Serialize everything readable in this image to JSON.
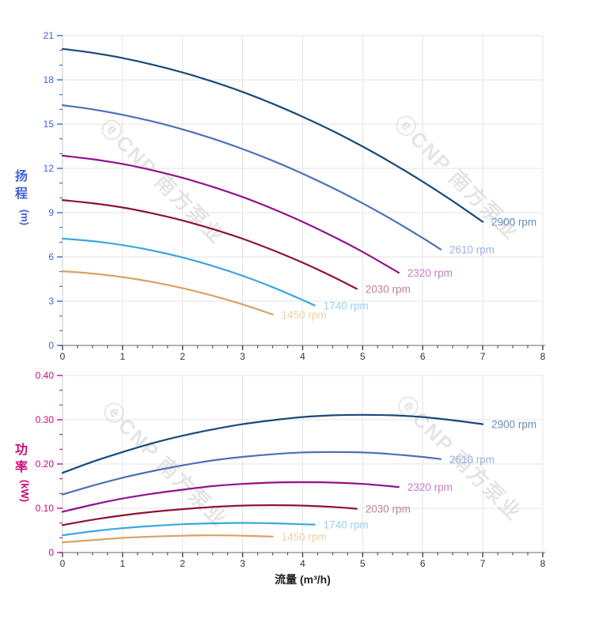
{
  "figure": {
    "watermark_text": "ⓔCNP 南方泵业",
    "xlabel": "流量 (m³/h)"
  },
  "chart_data": [
    {
      "type": "line",
      "id": "head-chart",
      "title": "",
      "xlabel": "",
      "ylabel": "扬程 (m)",
      "ylabel_main": "扬程",
      "ylabel_unit": "(m)",
      "axis_color": "#4262d6",
      "x_tick_color": "#333333",
      "xlim": [
        0,
        8
      ],
      "ylim": [
        0,
        21
      ],
      "x_major_step": 1,
      "x_minor_divisions": 4,
      "y_major_step": 3,
      "y_minor_divisions": 3,
      "y_tick_decimals": 0,
      "grid": true,
      "legend_position": "inline-end-labels",
      "series": [
        {
          "name": "2900 rpm",
          "color": "#1a4a78",
          "label_color": "#6a8cb4",
          "points": [
            [
              0,
              20.1
            ],
            [
              0.5,
              19.83
            ],
            [
              1,
              19.48
            ],
            [
              1.5,
              19.03
            ],
            [
              2,
              18.5
            ],
            [
              2.5,
              17.88
            ],
            [
              3,
              17.18
            ],
            [
              3.5,
              16.38
            ],
            [
              4,
              15.5
            ],
            [
              4.5,
              14.54
            ],
            [
              5,
              13.48
            ],
            [
              5.5,
              12.33
            ],
            [
              6,
              11.1
            ],
            [
              6.5,
              9.78
            ],
            [
              7,
              8.38
            ]
          ]
        },
        {
          "name": "2610 rpm",
          "color": "#4d71b8",
          "label_color": "#9fb1e0",
          "points": [
            [
              0,
              16.28
            ],
            [
              0.5,
              16.0
            ],
            [
              1,
              15.63
            ],
            [
              1.5,
              15.18
            ],
            [
              2,
              14.64
            ],
            [
              2.5,
              14.02
            ],
            [
              3,
              13.31
            ],
            [
              3.5,
              12.52
            ],
            [
              4,
              11.64
            ],
            [
              4.5,
              10.68
            ],
            [
              5,
              9.63
            ],
            [
              5.5,
              8.5
            ],
            [
              6,
              7.28
            ],
            [
              6.3,
              6.51
            ]
          ]
        },
        {
          "name": "2320 rpm",
          "color": "#90128e",
          "label_color": "#c77ec4",
          "points": [
            [
              0,
              12.86
            ],
            [
              0.5,
              12.62
            ],
            [
              1,
              12.3
            ],
            [
              1.5,
              11.87
            ],
            [
              2,
              11.36
            ],
            [
              2.5,
              10.75
            ],
            [
              3,
              10.06
            ],
            [
              3.5,
              9.26
            ],
            [
              4,
              8.38
            ],
            [
              4.5,
              7.4
            ],
            [
              5,
              6.34
            ],
            [
              5.6,
              4.93
            ]
          ]
        },
        {
          "name": "2030 rpm",
          "color": "#8e1431",
          "label_color": "#bf8295",
          "points": [
            [
              0,
              9.85
            ],
            [
              0.5,
              9.64
            ],
            [
              1,
              9.35
            ],
            [
              1.5,
              8.95
            ],
            [
              2,
              8.47
            ],
            [
              2.5,
              7.89
            ],
            [
              3,
              7.23
            ],
            [
              3.5,
              6.46
            ],
            [
              4,
              5.61
            ],
            [
              4.5,
              4.66
            ],
            [
              4.9,
              3.84
            ]
          ]
        },
        {
          "name": "1740 rpm",
          "color": "#3ba7e0",
          "label_color": "#9bd0ef",
          "points": [
            [
              0,
              7.24
            ],
            [
              0.5,
              7.07
            ],
            [
              1,
              6.8
            ],
            [
              1.5,
              6.43
            ],
            [
              2,
              5.96
            ],
            [
              2.5,
              5.39
            ],
            [
              3,
              4.72
            ],
            [
              3.5,
              3.95
            ],
            [
              4,
              3.08
            ],
            [
              4.2,
              2.71
            ]
          ]
        },
        {
          "name": "1450 rpm",
          "color": "#d8a265",
          "label_color": "#ecd2a4",
          "points": [
            [
              0,
              5.03
            ],
            [
              0.5,
              4.87
            ],
            [
              1,
              4.63
            ],
            [
              1.5,
              4.3
            ],
            [
              2,
              3.88
            ],
            [
              2.5,
              3.37
            ],
            [
              3,
              2.78
            ],
            [
              3.5,
              2.1
            ]
          ]
        }
      ]
    },
    {
      "type": "line",
      "id": "power-chart",
      "title": "",
      "xlabel": "流量 (m³/h)",
      "ylabel": "功率 (kW)",
      "ylabel_main": "功率",
      "ylabel_unit": "(kW)",
      "axis_color": "#cb0c7c",
      "x_tick_color": "#333333",
      "xlim": [
        0,
        8
      ],
      "ylim": [
        0,
        0.4
      ],
      "x_major_step": 1,
      "x_minor_divisions": 4,
      "y_major_step": 0.1,
      "y_minor_divisions": 3,
      "y_tick_decimals": 2,
      "grid": true,
      "legend_position": "inline-end-labels",
      "series": [
        {
          "name": "2900 rpm",
          "color": "#1a4a78",
          "label_color": "#6a8cb4",
          "points": [
            [
              0,
              0.18
            ],
            [
              0.5,
              0.205
            ],
            [
              1,
              0.227
            ],
            [
              1.5,
              0.247
            ],
            [
              2,
              0.264
            ],
            [
              2.5,
              0.278
            ],
            [
              3,
              0.29
            ],
            [
              3.5,
              0.299
            ],
            [
              4,
              0.306
            ],
            [
              4.5,
              0.31
            ],
            [
              5,
              0.311
            ],
            [
              5.5,
              0.31
            ],
            [
              6,
              0.306
            ],
            [
              6.5,
              0.299
            ],
            [
              7,
              0.29
            ]
          ]
        },
        {
          "name": "2610 rpm",
          "color": "#4d71b8",
          "label_color": "#9fb1e0",
          "points": [
            [
              0,
              0.131
            ],
            [
              0.5,
              0.151
            ],
            [
              1,
              0.169
            ],
            [
              1.5,
              0.184
            ],
            [
              2,
              0.197
            ],
            [
              2.5,
              0.208
            ],
            [
              3,
              0.216
            ],
            [
              3.5,
              0.222
            ],
            [
              4,
              0.226
            ],
            [
              4.5,
              0.227
            ],
            [
              5,
              0.226
            ],
            [
              5.5,
              0.222
            ],
            [
              6,
              0.216
            ],
            [
              6.3,
              0.211
            ]
          ]
        },
        {
          "name": "2320 rpm",
          "color": "#90128e",
          "label_color": "#c77ec4",
          "points": [
            [
              0,
              0.092
            ],
            [
              0.5,
              0.108
            ],
            [
              1,
              0.122
            ],
            [
              1.5,
              0.133
            ],
            [
              2,
              0.142
            ],
            [
              2.5,
              0.15
            ],
            [
              3,
              0.155
            ],
            [
              3.5,
              0.158
            ],
            [
              4,
              0.159
            ],
            [
              4.5,
              0.158
            ],
            [
              5,
              0.155
            ],
            [
              5.6,
              0.148
            ]
          ]
        },
        {
          "name": "2030 rpm",
          "color": "#8e1431",
          "label_color": "#bf8295",
          "points": [
            [
              0,
              0.062
            ],
            [
              0.5,
              0.074
            ],
            [
              1,
              0.084
            ],
            [
              1.5,
              0.092
            ],
            [
              2,
              0.098
            ],
            [
              2.5,
              0.103
            ],
            [
              3,
              0.106
            ],
            [
              3.5,
              0.107
            ],
            [
              4,
              0.106
            ],
            [
              4.5,
              0.103
            ],
            [
              4.9,
              0.099
            ]
          ]
        },
        {
          "name": "1740 rpm",
          "color": "#3ba7e0",
          "label_color": "#9bd0ef",
          "points": [
            [
              0,
              0.039
            ],
            [
              0.5,
              0.048
            ],
            [
              1,
              0.055
            ],
            [
              1.5,
              0.06
            ],
            [
              2,
              0.064
            ],
            [
              2.5,
              0.066
            ],
            [
              3,
              0.067
            ],
            [
              3.5,
              0.066
            ],
            [
              4,
              0.064
            ],
            [
              4.2,
              0.063
            ]
          ]
        },
        {
          "name": "1450 rpm",
          "color": "#d8a265",
          "label_color": "#ecd2a4",
          "points": [
            [
              0,
              0.023
            ],
            [
              0.5,
              0.028
            ],
            [
              1,
              0.033
            ],
            [
              1.5,
              0.036
            ],
            [
              2,
              0.038
            ],
            [
              2.5,
              0.039
            ],
            [
              3,
              0.038
            ],
            [
              3.5,
              0.036
            ]
          ]
        }
      ]
    }
  ],
  "style": {
    "grid_color": "#e3e3e3",
    "axis_line_color": "#9a9a9a",
    "y_axis_line_color": "#c9c9c9",
    "watermark_color": "#d4d4d4"
  }
}
